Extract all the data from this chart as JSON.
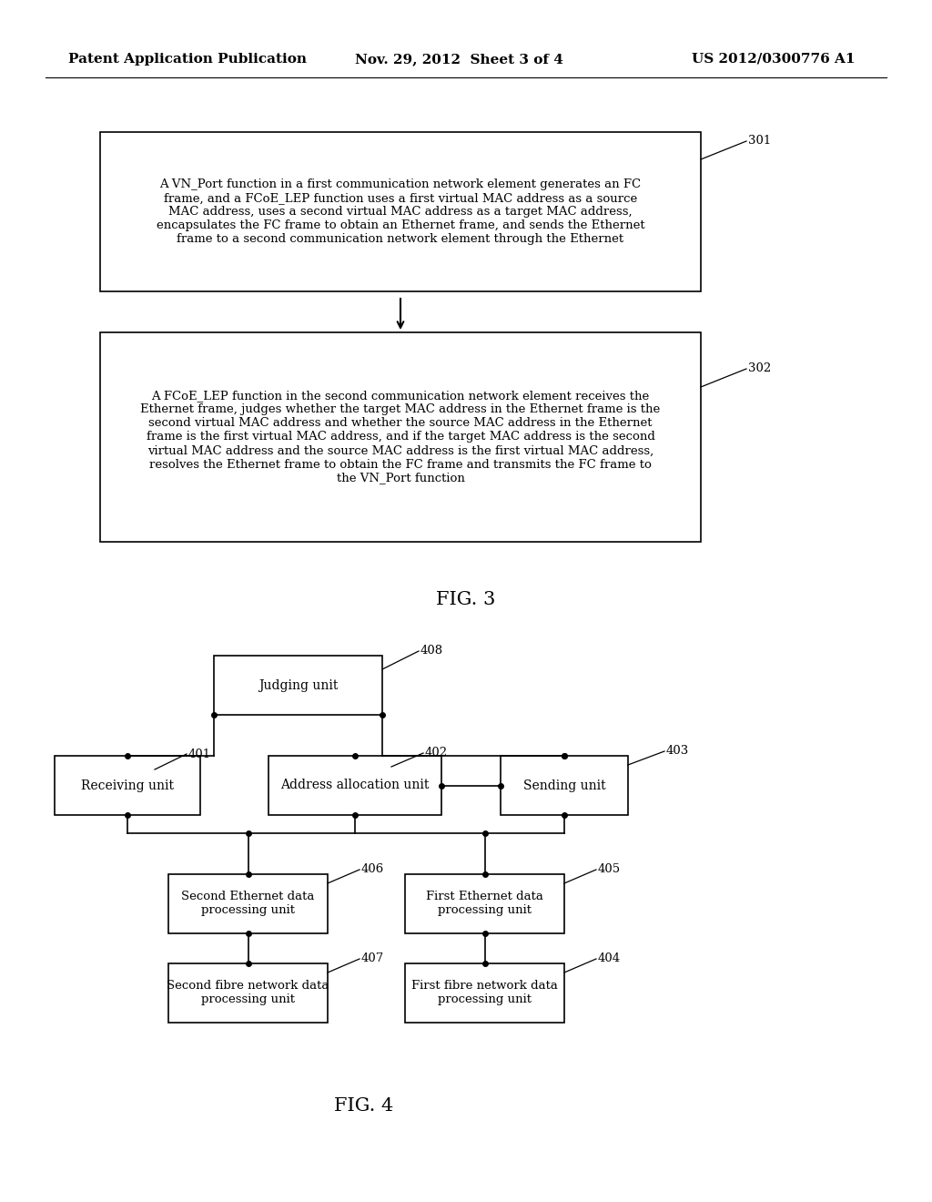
{
  "header_left": "Patent Application Publication",
  "header_mid": "Nov. 29, 2012  Sheet 3 of 4",
  "header_right": "US 2012/0300776 A1",
  "fig3_label": "FIG. 3",
  "fig4_label": "FIG. 4",
  "box301_text": "A VN_Port function in a first communication network element generates an FC\nframe, and a FCoE_LEP function uses a first virtual MAC address as a source\nMAC address, uses a second virtual MAC address as a target MAC address,\nencapsulates the FC frame to obtain an Ethernet frame, and sends the Ethernet\nframe to a second communication network element through the Ethernet",
  "box302_text": "A FCoE_LEP function in the second communication network element receives the\nEthernet frame, judges whether the target MAC address in the Ethernet frame is the\nsecond virtual MAC address and whether the source MAC address in the Ethernet\nframe is the first virtual MAC address, and if the target MAC address is the second\nvirtual MAC address and the source MAC address is the first virtual MAC address,\nresolves the Ethernet frame to obtain the FC frame and transmits the FC frame to\nthe VN_Port function",
  "label301": "301",
  "label302": "302",
  "label401": "401",
  "label402": "402",
  "label403": "403",
  "label404": "404",
  "label405": "405",
  "label406": "406",
  "label407": "407",
  "label408": "408",
  "box_judging": "Judging unit",
  "box_receiving": "Receiving unit",
  "box_address": "Address allocation unit",
  "box_sending": "Sending unit",
  "box_second_eth": "Second Ethernet data\nprocessing unit",
  "box_first_eth": "First Ethernet data\nprocessing unit",
  "box_second_fibre": "Second fibre network data\nprocessing unit",
  "box_first_fibre": "First fibre network data\nprocessing unit",
  "bg_color": "#ffffff",
  "line_color": "#000000",
  "text_color": "#000000"
}
